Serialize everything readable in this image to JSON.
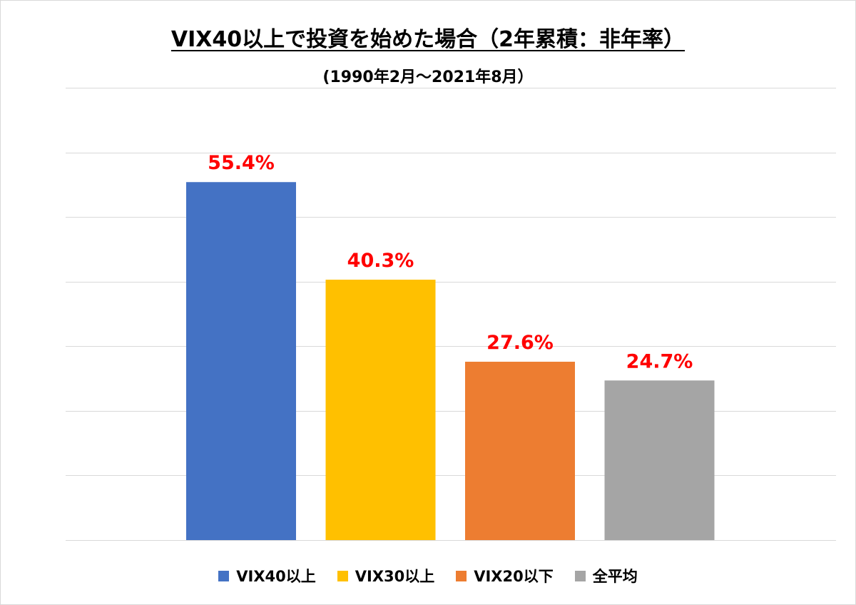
{
  "chart_data": {
    "type": "bar",
    "title": "VIX40以上で投資を始めた場合（2年累積：非年率）",
    "subtitle": "(1990年2月～2021年8月）",
    "categories": [
      "VIX40以上",
      "VIX30以上",
      "VIX20以下",
      "全平均"
    ],
    "values": [
      55.4,
      40.3,
      27.6,
      24.7
    ],
    "data_labels": [
      "55.4%",
      "40.3%",
      "27.6%",
      "24.7%"
    ],
    "colors": [
      "#4472C4",
      "#FFC000",
      "#ED7D31",
      "#A5A5A5"
    ],
    "label_color": "#FF0000",
    "gridline_color": "#D9D9D9",
    "ylim": [
      0,
      70
    ],
    "grid": true,
    "y_axis_labels_visible": false,
    "legend_position": "bottom",
    "legend": [
      "VIX40以上",
      "VIX30以上",
      "VIX20以下",
      "全平均"
    ]
  }
}
